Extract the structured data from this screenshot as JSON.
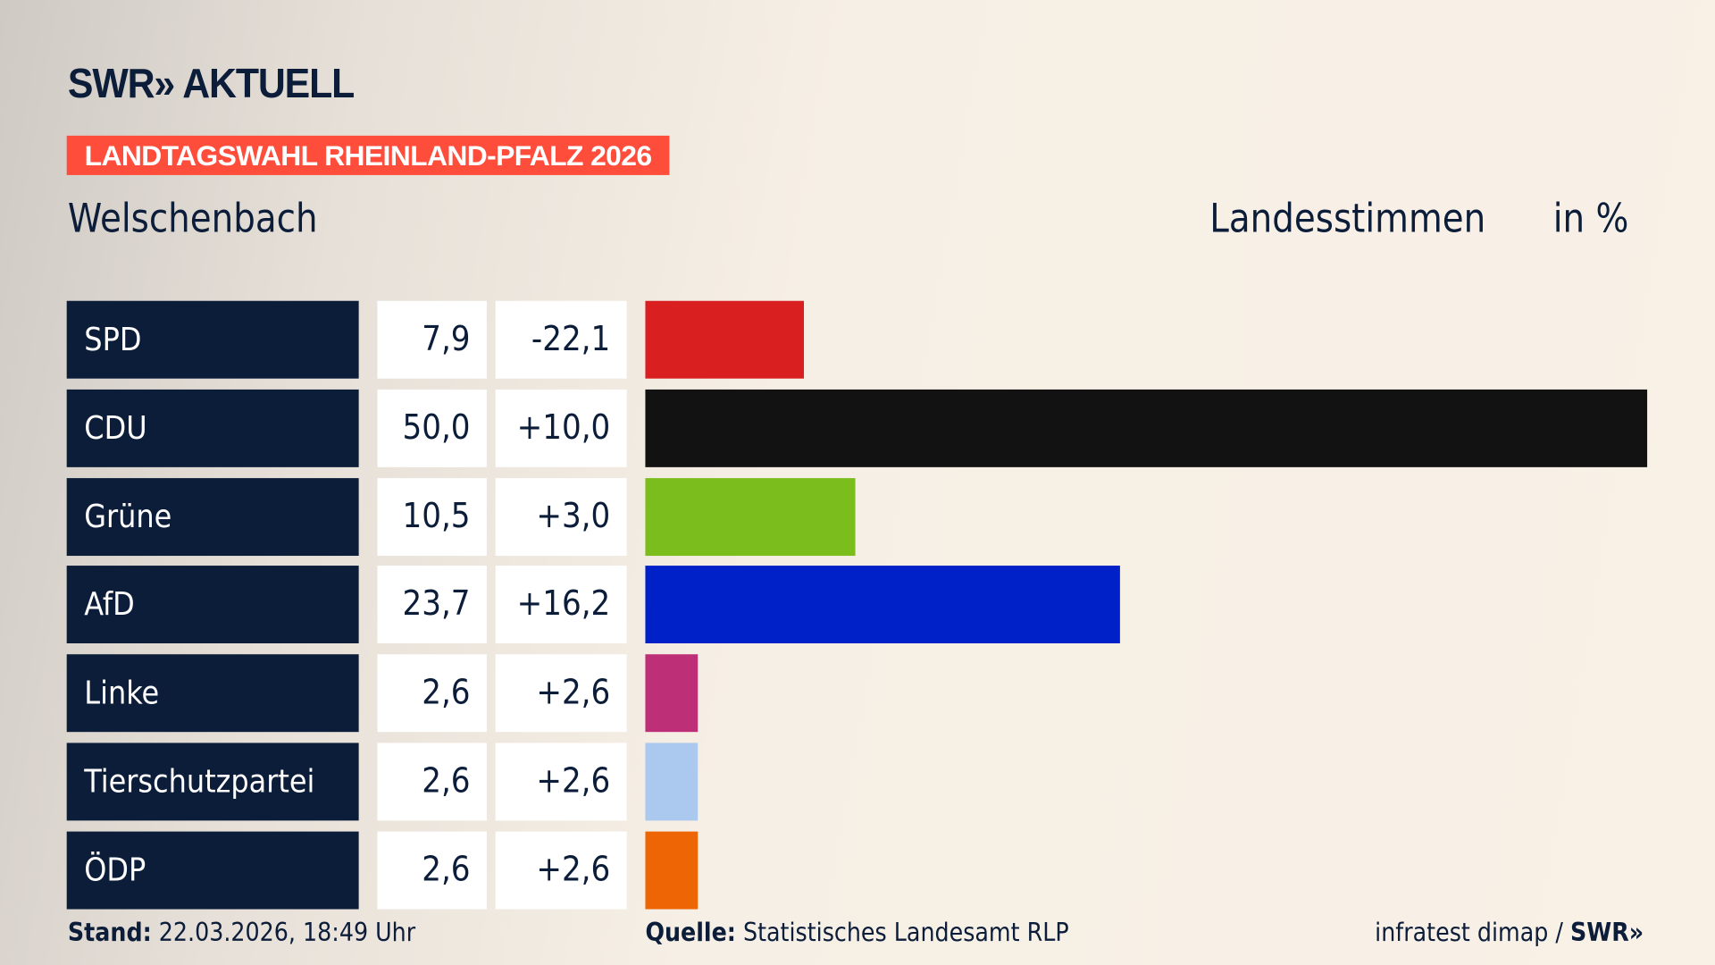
{
  "logo": "SWR» AKTUELL",
  "badge": "LANDTAGSWAHL RHEINLAND-PFALZ 2026",
  "place": "Welschenbach",
  "header": {
    "type": "Landesstimmen",
    "unit": "in %"
  },
  "footer": {
    "stand_label": "Stand:",
    "stand_value": "22.03.2026, 18:49 Uhr",
    "quelle_label": "Quelle:",
    "quelle_value": "Statistisches Landesamt RLP",
    "credit": "infratest dimap / ",
    "credit_logo": "SWR»"
  },
  "chart_data": {
    "type": "bar",
    "orientation": "horizontal",
    "xlim": [
      0,
      50
    ],
    "categories": [
      "SPD",
      "CDU",
      "Grüne",
      "AfD",
      "Linke",
      "Tierschutzpartei",
      "ÖDP"
    ],
    "values": [
      7.9,
      50.0,
      10.5,
      23.7,
      2.6,
      2.6,
      2.6
    ],
    "value_labels": [
      "7,9",
      "50,0",
      "10,5",
      "23,7",
      "2,6",
      "2,6",
      "2,6"
    ],
    "diff_labels": [
      "-22,1",
      "+10,0",
      "+3,0",
      "+16,2",
      "+2,6",
      "+2,6",
      "+2,6"
    ],
    "colors": [
      "#d91f20",
      "#121212",
      "#7bbd1c",
      "#0020c8",
      "#bd2f77",
      "#abc8ef",
      "#ee6505"
    ]
  }
}
